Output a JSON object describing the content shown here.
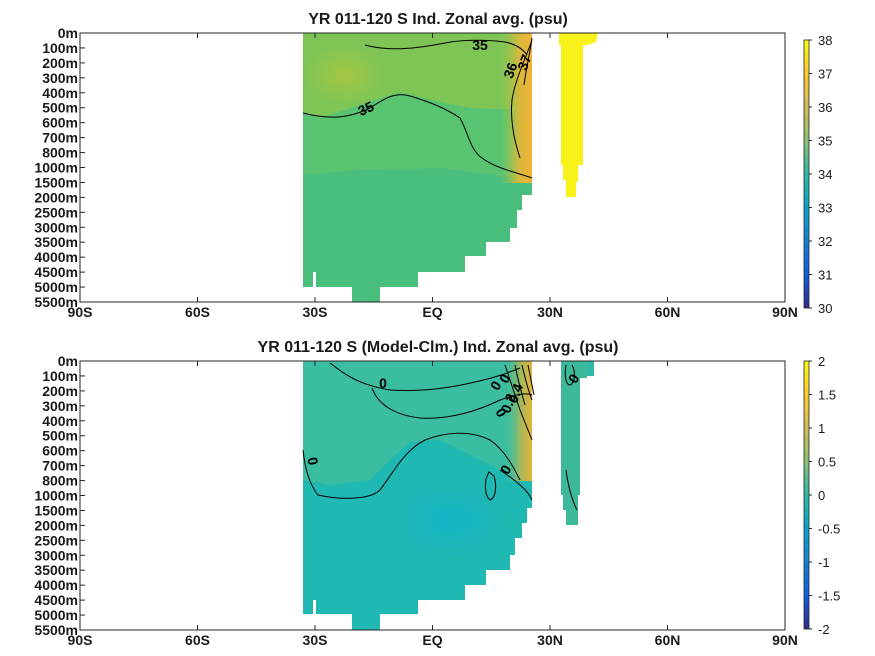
{
  "chart_data": [
    {
      "type": "heatmap",
      "title": "YR 011-120 S Ind. Zonal avg. (psu)",
      "x_ticks": [
        "90S",
        "60S",
        "30S",
        "EQ",
        "30N",
        "60N",
        "90N"
      ],
      "x_tick_values": [
        -90,
        -60,
        -30,
        0,
        30,
        60,
        90
      ],
      "xlim": [
        -90,
        90
      ],
      "y_ticks": [
        "0m",
        "100m",
        "200m",
        "300m",
        "400m",
        "500m",
        "600m",
        "700m",
        "800m",
        "1000m",
        "1500m",
        "2000m",
        "2500m",
        "3000m",
        "3500m",
        "4000m",
        "4500m",
        "5000m",
        "5500m"
      ],
      "y_axis_reversed": true,
      "colorbar": {
        "min": 30,
        "max": 38,
        "ticks": [
          "38",
          "37",
          "36",
          "35",
          "34",
          "33",
          "32",
          "31",
          "30"
        ],
        "colormap": "parula"
      },
      "contour_labels": [
        "35",
        "35",
        "36",
        "37"
      ],
      "colors": {
        "south_field": "#5ec56f",
        "upper_band": "#8cc84c",
        "north_boundary": "#e8b83a",
        "red_sea": "#f9f21a",
        "deep": "#48c07f"
      }
    },
    {
      "type": "heatmap",
      "title": "YR 011-120 S (Model-Clm.) Ind. Zonal avg. (psu)",
      "x_ticks": [
        "90S",
        "60S",
        "30S",
        "EQ",
        "30N",
        "60N",
        "90N"
      ],
      "x_tick_values": [
        -90,
        -60,
        -30,
        0,
        30,
        60,
        90
      ],
      "xlim": [
        -90,
        90
      ],
      "y_ticks": [
        "0m",
        "100m",
        "200m",
        "300m",
        "400m",
        "500m",
        "600m",
        "700m",
        "800m",
        "1000m",
        "1500m",
        "2000m",
        "2500m",
        "3000m",
        "3500m",
        "4000m",
        "4500m",
        "5000m",
        "5500m"
      ],
      "y_axis_reversed": true,
      "colorbar": {
        "min": -2,
        "max": 2,
        "ticks": [
          "2",
          "1.5",
          "1",
          "0.5",
          "0",
          "-0.5",
          "-1",
          "-1.5",
          "-2"
        ],
        "colormap": "parula"
      },
      "contour_labels": [
        "0",
        "0",
        "0",
        "0",
        "0",
        "0.2",
        "0.4",
        "0",
        "0"
      ],
      "colors": {
        "field": "#1eb7b0",
        "upper": "#3ebb9c",
        "north_boundary": "#c8b04a",
        "red_sea": "#37b89a"
      }
    }
  ]
}
